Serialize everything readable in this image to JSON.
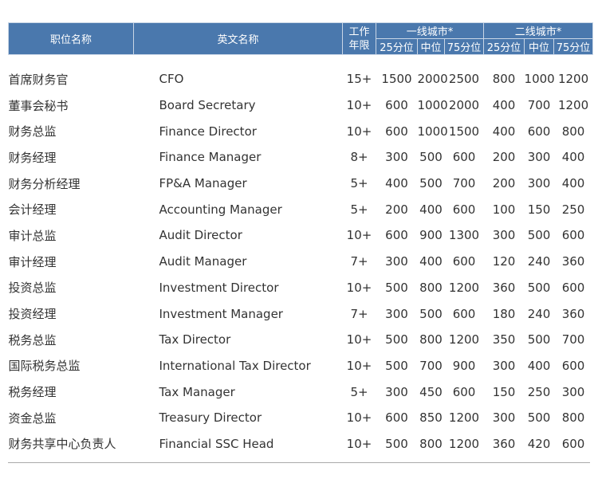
{
  "header": {
    "title": "职位名称",
    "english": "英文名称",
    "years": "工作年限",
    "tier1": "一线城市*",
    "tier2": "二线城市*",
    "p25": "25分位",
    "median": "中位",
    "p75": "75分位"
  },
  "rows": [
    [
      "首席财务官",
      "CFO",
      "15+",
      "1500",
      "2000",
      "2500",
      "800",
      "1000",
      "1200"
    ],
    [
      "董事会秘书",
      "Board Secretary",
      "10+",
      "600",
      "1000",
      "2000",
      "400",
      "700",
      "1200"
    ],
    [
      "财务总监",
      "Finance Director",
      "10+",
      "600",
      "1000",
      "1500",
      "400",
      "600",
      "800"
    ],
    [
      "财务经理",
      "Finance Manager",
      "8+",
      "300",
      "500",
      "600",
      "200",
      "300",
      "400"
    ],
    [
      "财务分析经理",
      "FP&A Manager",
      "5+",
      "400",
      "500",
      "700",
      "200",
      "300",
      "400"
    ],
    [
      "会计经理",
      "Accounting Manager",
      "5+",
      "200",
      "400",
      "600",
      "100",
      "150",
      "250"
    ],
    [
      "审计总监",
      "Audit Director",
      "10+",
      "600",
      "900",
      "1300",
      "300",
      "500",
      "600"
    ],
    [
      "审计经理",
      "Audit Manager",
      "7+",
      "300",
      "400",
      "600",
      "120",
      "240",
      "360"
    ],
    [
      "投资总监",
      "Investment Director",
      "10+",
      "500",
      "800",
      "1200",
      "360",
      "500",
      "600"
    ],
    [
      "投资经理",
      "Investment Manager",
      "7+",
      "300",
      "500",
      "600",
      "180",
      "240",
      "360"
    ],
    [
      "税务总监",
      "Tax Director",
      "10+",
      "500",
      "800",
      "1200",
      "350",
      "500",
      "700"
    ],
    [
      "国际税务总监",
      "International Tax Director",
      "10+",
      "500",
      "700",
      "900",
      "300",
      "400",
      "600"
    ],
    [
      "税务经理",
      "Tax Manager",
      "5+",
      "300",
      "450",
      "600",
      "150",
      "250",
      "300"
    ],
    [
      "资金总监",
      "Treasury Director",
      "10+",
      "600",
      "850",
      "1200",
      "300",
      "500",
      "800"
    ],
    [
      "财务共享中心负责人",
      "Financial SSC Head",
      "10+",
      "500",
      "800",
      "1200",
      "360",
      "420",
      "600"
    ]
  ]
}
